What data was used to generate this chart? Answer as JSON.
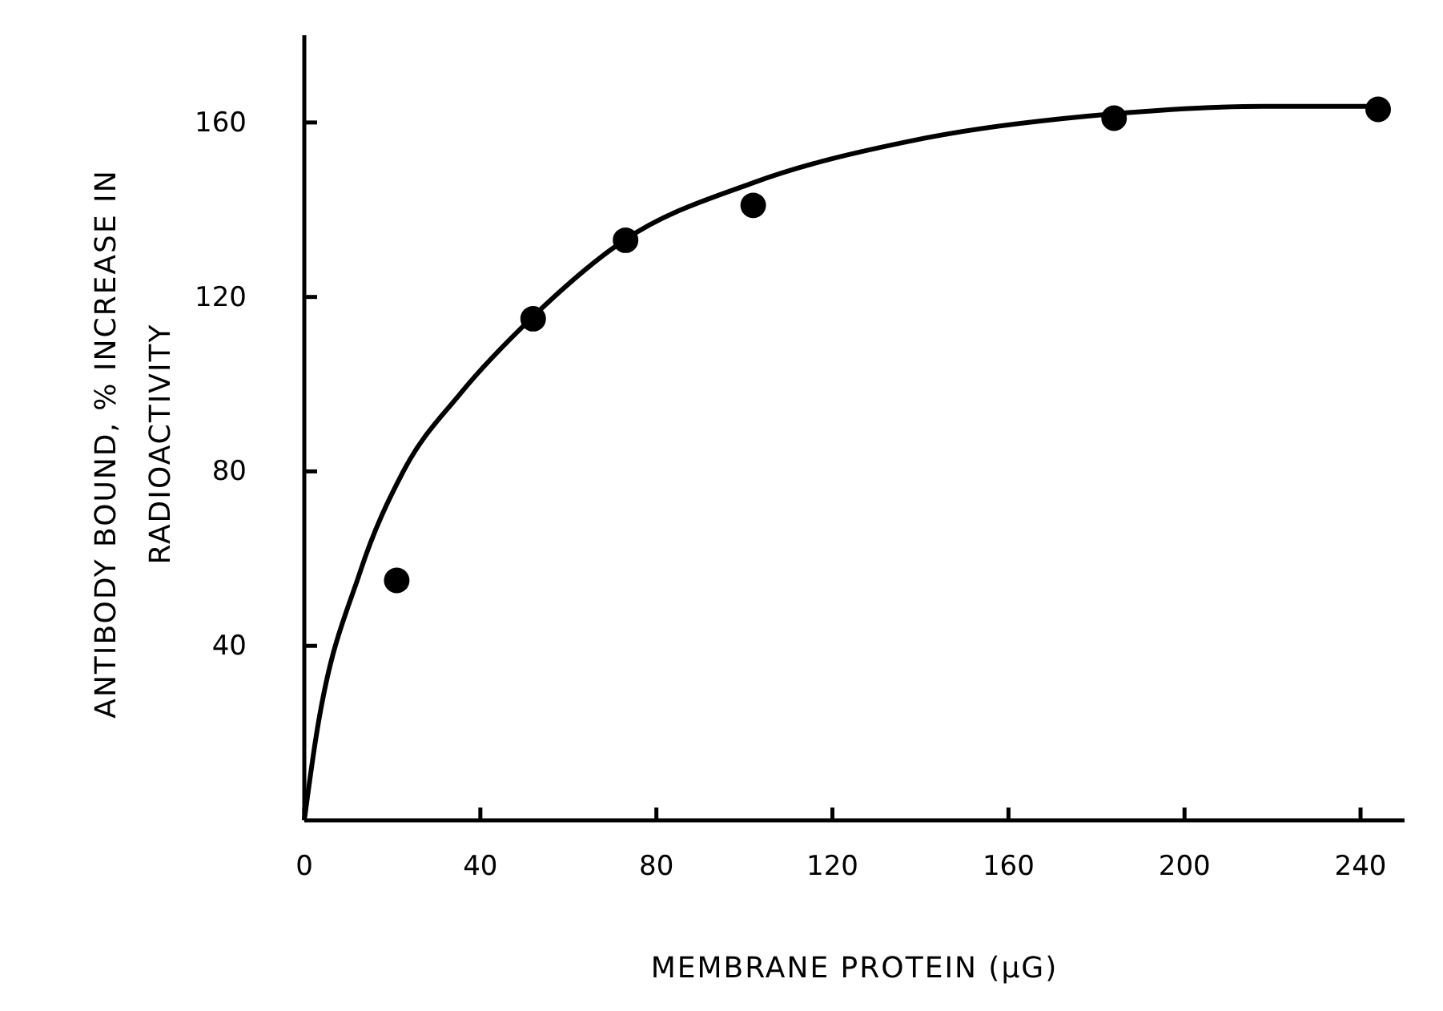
{
  "chart_data": {
    "type": "scatter",
    "xlabel": "MEMBRANE PROTEIN (μG)",
    "ylabel": "ANTIBODY BOUND, % INCREASE IN RADIOACTIVITY",
    "xlim": [
      0,
      250
    ],
    "ylim": [
      0,
      180
    ],
    "xticks": [
      0,
      40,
      80,
      120,
      160,
      200,
      240
    ],
    "yticks": [
      40,
      80,
      120,
      160
    ],
    "grid": false,
    "series": [
      {
        "marker": "circle",
        "color": "#000000",
        "x": [
          21,
          52,
          73,
          102,
          184,
          244
        ],
        "values": [
          55,
          115,
          133,
          141,
          161,
          163
        ]
      },
      {
        "type": "line",
        "marker": "none",
        "line_style": "solid",
        "color": "#000000",
        "x": [
          0,
          2.5,
          12.7,
          22.5,
          35.6,
          52,
          72.7,
          101.5,
          139,
          184,
          218,
          244
        ],
        "values": [
          0,
          18,
          57,
          80,
          98,
          115.5,
          133,
          146,
          156,
          162,
          163.7,
          163.7
        ]
      }
    ]
  }
}
